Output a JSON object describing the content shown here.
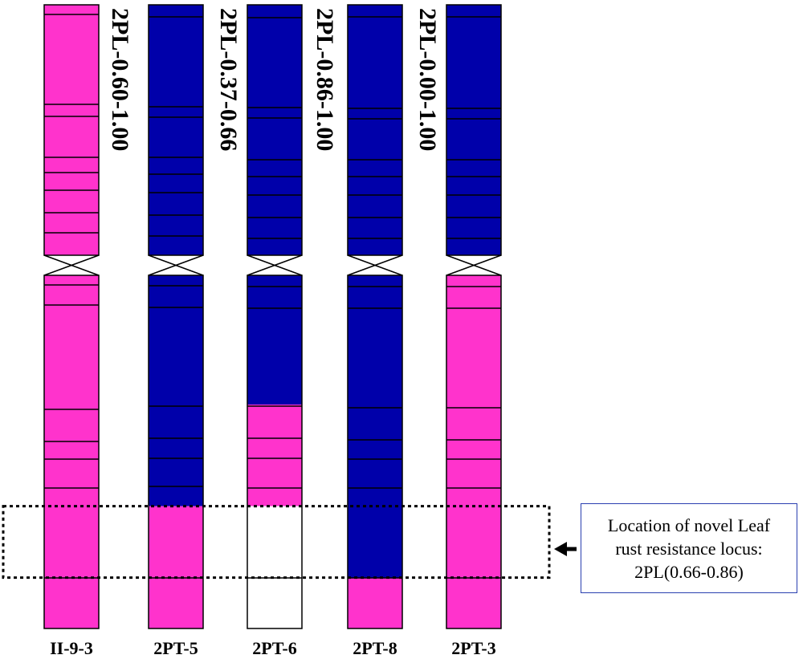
{
  "chromosomes": [
    {
      "name": "II-9-3",
      "label": "2PL-0.60-1.00",
      "short": [
        "pink"
      ],
      "long": [
        [
          "pink",
          0,
          1
        ]
      ]
    },
    {
      "name": "2PT-5",
      "label": "2PL-0.37-0.66",
      "short": [
        "blue"
      ],
      "long": [
        [
          "blue",
          0,
          0.6537
        ],
        [
          "pink",
          0.6537,
          1
        ]
      ]
    },
    {
      "name": "2PT-6",
      "label": "2PL-0.86-1.00",
      "short": [
        "blue"
      ],
      "long": [
        [
          "blue",
          0,
          0.3659
        ],
        [
          "pink",
          0.3659,
          0.6537
        ],
        [
          "white",
          0.6537,
          1
        ]
      ]
    },
    {
      "name": "2PT-8",
      "label": "2PL-0.00-1.00",
      "short": [
        "blue"
      ],
      "long": [
        [
          "blue",
          0,
          0.8561
        ],
        [
          "pink",
          0.8561,
          1
        ]
      ]
    },
    {
      "name": "2PT-3",
      "label": "",
      "short": [
        "blue"
      ],
      "long": [
        [
          "pink",
          0,
          1
        ]
      ]
    }
  ],
  "region_box": {
    "from": 0.6537,
    "to": 0.8561
  },
  "callout": {
    "lines": [
      "Location of novel Leaf",
      "rust resistance locus:",
      "2PL(0.66-0.86)"
    ]
  },
  "colors": {
    "pink": "#ff33cc",
    "blue": "#0000aa",
    "white": "#ffffff",
    "outline": "#000000",
    "callout_border": "#2a3fb0"
  }
}
